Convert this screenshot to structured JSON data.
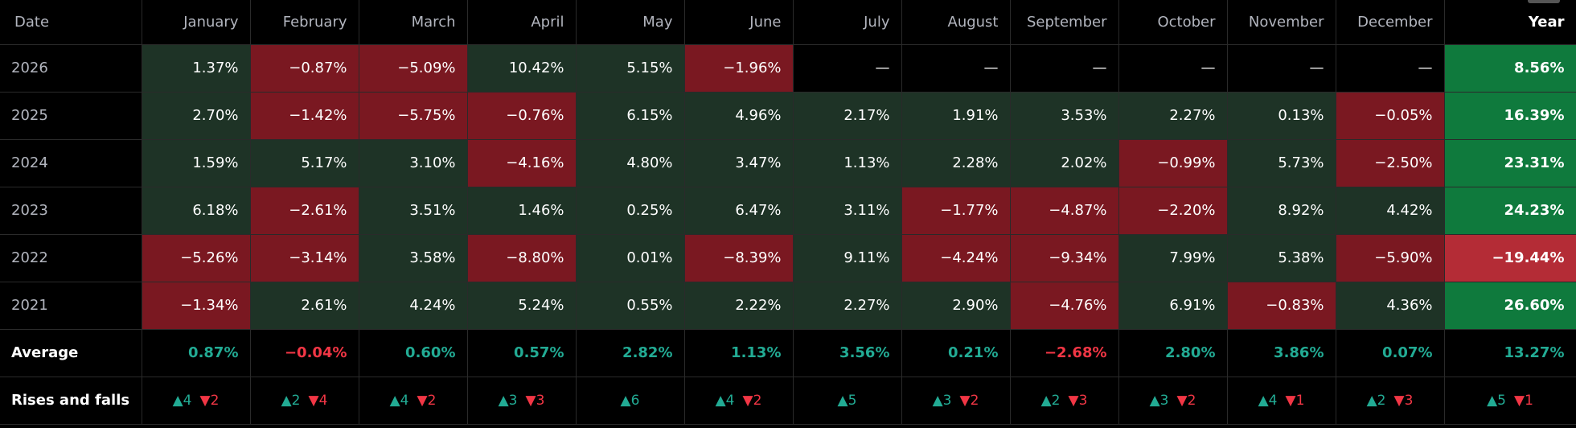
{
  "header": {
    "date_label": "Date",
    "months": [
      "January",
      "February",
      "March",
      "April",
      "May",
      "June",
      "July",
      "August",
      "September",
      "October",
      "November",
      "December"
    ],
    "year_label": "Year"
  },
  "rows": [
    {
      "label": "2026",
      "values": [
        "1.37%",
        "−0.87%",
        "−5.09%",
        "10.42%",
        "5.15%",
        "−1.96%",
        "—",
        "—",
        "—",
        "—",
        "—",
        "—"
      ],
      "year": "8.56%"
    },
    {
      "label": "2025",
      "values": [
        "2.70%",
        "−1.42%",
        "−5.75%",
        "−0.76%",
        "6.15%",
        "4.96%",
        "2.17%",
        "1.91%",
        "3.53%",
        "2.27%",
        "0.13%",
        "−0.05%"
      ],
      "year": "16.39%"
    },
    {
      "label": "2024",
      "values": [
        "1.59%",
        "5.17%",
        "3.10%",
        "−4.16%",
        "4.80%",
        "3.47%",
        "1.13%",
        "2.28%",
        "2.02%",
        "−0.99%",
        "5.73%",
        "−2.50%"
      ],
      "year": "23.31%"
    },
    {
      "label": "2023",
      "values": [
        "6.18%",
        "−2.61%",
        "3.51%",
        "1.46%",
        "0.25%",
        "6.47%",
        "3.11%",
        "−1.77%",
        "−4.87%",
        "−2.20%",
        "8.92%",
        "4.42%"
      ],
      "year": "24.23%"
    },
    {
      "label": "2022",
      "values": [
        "−5.26%",
        "−3.14%",
        "3.58%",
        "−8.80%",
        "0.01%",
        "−8.39%",
        "9.11%",
        "−4.24%",
        "−9.34%",
        "7.99%",
        "5.38%",
        "−5.90%"
      ],
      "year": "−19.44%"
    },
    {
      "label": "2021",
      "values": [
        "−1.34%",
        "2.61%",
        "4.24%",
        "5.24%",
        "0.55%",
        "2.22%",
        "2.27%",
        "2.90%",
        "−4.76%",
        "6.91%",
        "−0.83%",
        "4.36%"
      ],
      "year": "26.60%"
    }
  ],
  "average": {
    "label": "Average",
    "values": [
      "0.87%",
      "−0.04%",
      "0.60%",
      "0.57%",
      "2.82%",
      "1.13%",
      "3.56%",
      "0.21%",
      "−2.68%",
      "2.80%",
      "3.86%",
      "0.07%"
    ],
    "year": "13.27%"
  },
  "rises_falls": {
    "label": "Rises and falls",
    "up_icon": "triangle-up-icon",
    "down_icon": "triangle-down-icon",
    "values": [
      {
        "up": "4",
        "down": "2"
      },
      {
        "up": "2",
        "down": "4"
      },
      {
        "up": "4",
        "down": "2"
      },
      {
        "up": "3",
        "down": "3"
      },
      {
        "up": "6",
        "down": null
      },
      {
        "up": "4",
        "down": "2"
      },
      {
        "up": "5",
        "down": null
      },
      {
        "up": "3",
        "down": "2"
      },
      {
        "up": "2",
        "down": "3"
      },
      {
        "up": "3",
        "down": "2"
      },
      {
        "up": "4",
        "down": "1"
      },
      {
        "up": "2",
        "down": "3"
      }
    ],
    "year": {
      "up": "5",
      "down": "1"
    }
  },
  "colors": {
    "positive_cell": "#1e3326",
    "negative_cell": "#7a1821",
    "year_positive": "#0f7a3d",
    "year_negative": "#b42c36",
    "up_text": "#22ab94",
    "down_text": "#f23645"
  }
}
